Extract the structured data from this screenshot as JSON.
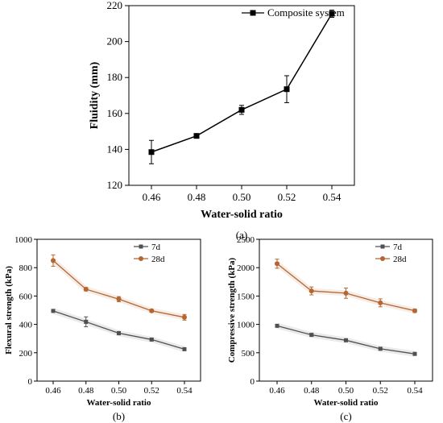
{
  "chart_data": [
    {
      "id": "a",
      "type": "line",
      "caption": "(a)",
      "xlabel": "Water-solid ratio",
      "ylabel": "Fluidity (mm)",
      "categories": [
        "0.46",
        "0.48",
        "0.50",
        "0.52",
        "0.54"
      ],
      "ylim": [
        120,
        220
      ],
      "yticks": [
        "120",
        "140",
        "160",
        "180",
        "200",
        "220"
      ],
      "legend_position": "top-right",
      "series": [
        {
          "name": "Composite system",
          "color": "#000000",
          "marker": "square",
          "values": [
            138.5,
            147.5,
            162,
            173.5,
            215.5
          ],
          "errors": [
            6.5,
            1,
            2.5,
            7.5,
            2
          ]
        }
      ]
    },
    {
      "id": "b",
      "type": "line",
      "caption": "(b)",
      "xlabel": "Water-solid ratio",
      "ylabel": "Flexural strength (kPa)",
      "categories": [
        "0.46",
        "0.48",
        "0.50",
        "0.52",
        "0.54"
      ],
      "ylim": [
        0,
        1000
      ],
      "yticks": [
        "0",
        "200",
        "400",
        "600",
        "800",
        "1000"
      ],
      "legend_position": "top-right",
      "series": [
        {
          "name": "7d",
          "color": "#505050",
          "marker": "square",
          "values": [
            495,
            418,
            338,
            293,
            225
          ],
          "errors": [
            8,
            35,
            12,
            8,
            8
          ]
        },
        {
          "name": "28d",
          "color": "#b5652f",
          "marker": "circle",
          "values": [
            850,
            648,
            578,
            496,
            450
          ],
          "errors": [
            40,
            12,
            18,
            10,
            20
          ]
        }
      ]
    },
    {
      "id": "c",
      "type": "line",
      "caption": "(c)",
      "xlabel": "Water-solid ratio",
      "ylabel": "Compressive strength (kPa)",
      "categories": [
        "0.46",
        "0.48",
        "0.50",
        "0.52",
        "0.54"
      ],
      "ylim": [
        0,
        2500
      ],
      "yticks": [
        "0",
        "500",
        "1000",
        "1500",
        "2000",
        "2500"
      ],
      "legend_position": "top-right",
      "series": [
        {
          "name": "7d",
          "color": "#505050",
          "marker": "square",
          "values": [
            975,
            815,
            720,
            570,
            480
          ],
          "errors": [
            15,
            25,
            20,
            15,
            15
          ]
        },
        {
          "name": "28d",
          "color": "#b5652f",
          "marker": "circle",
          "values": [
            2070,
            1590,
            1550,
            1380,
            1240
          ],
          "errors": [
            80,
            70,
            90,
            70,
            30
          ]
        }
      ]
    }
  ]
}
